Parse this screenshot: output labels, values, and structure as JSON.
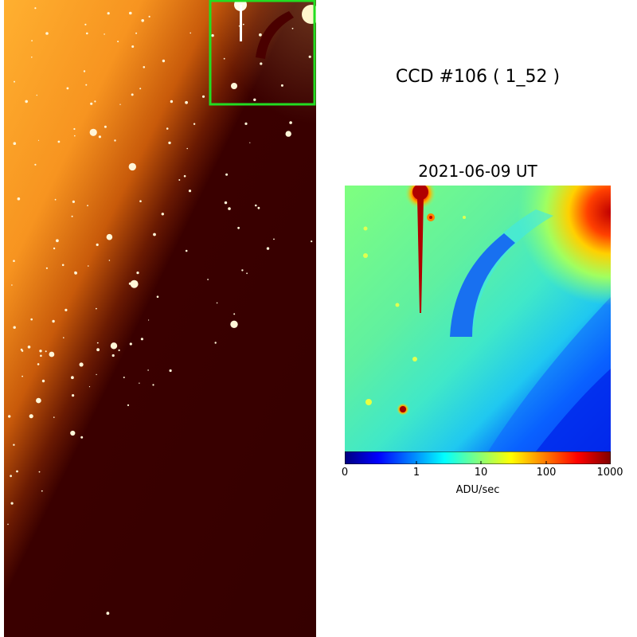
{
  "ccd_title": "CCD #106 ( 1_52 )",
  "date_title": "2021-06-09 UT",
  "colorbar": {
    "label": "ADU/sec",
    "ticks": [
      "0",
      "1",
      "10",
      "100",
      "1000"
    ],
    "colors": [
      "#00007f",
      "#0000ff",
      "#007fff",
      "#00ffff",
      "#7fff7f",
      "#ffff00",
      "#ff7f00",
      "#ff0000",
      "#7f0000"
    ]
  },
  "highlight_box_color": "#22dd22"
}
